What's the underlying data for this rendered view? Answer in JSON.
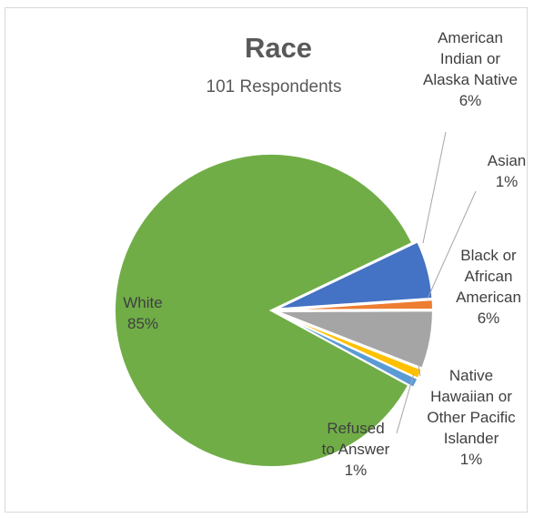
{
  "chart_data": {
    "type": "pie",
    "title": "Race",
    "subtitle": "101 Respondents",
    "slices": [
      {
        "label": "American Indian or Alaska Native",
        "value": 6,
        "pct_label": "6%",
        "color": "#4472c4"
      },
      {
        "label": "Asian",
        "value": 1,
        "pct_label": "1%",
        "color": "#ed7d31"
      },
      {
        "label": "Black or African American",
        "value": 6,
        "pct_label": "6%",
        "color": "#a5a5a5"
      },
      {
        "label": "Native Hawaiian or Other Pacific Islander",
        "value": 1,
        "pct_label": "1%",
        "color": "#ffc000"
      },
      {
        "label": "Refused to Answer",
        "value": 1,
        "pct_label": "1%",
        "color": "#5b9bd5"
      },
      {
        "label": "White",
        "value": 85,
        "pct_label": "85%",
        "color": "#70ad47"
      }
    ]
  },
  "labels": [
    {
      "lines": [
        "American",
        "Indian or",
        "Alaska Native"
      ],
      "pct": "6%"
    },
    {
      "lines": [
        "Asian"
      ],
      "pct": "1%"
    },
    {
      "lines": [
        "Black or",
        "African",
        "American"
      ],
      "pct": "6%"
    },
    {
      "lines": [
        "Native",
        "Hawaiian or",
        "Other Pacific",
        "Islander"
      ],
      "pct": "1%"
    },
    {
      "lines": [
        "Refused",
        "to Answer"
      ],
      "pct": "1%"
    },
    {
      "lines": [
        "White"
      ],
      "pct": "85%"
    }
  ]
}
